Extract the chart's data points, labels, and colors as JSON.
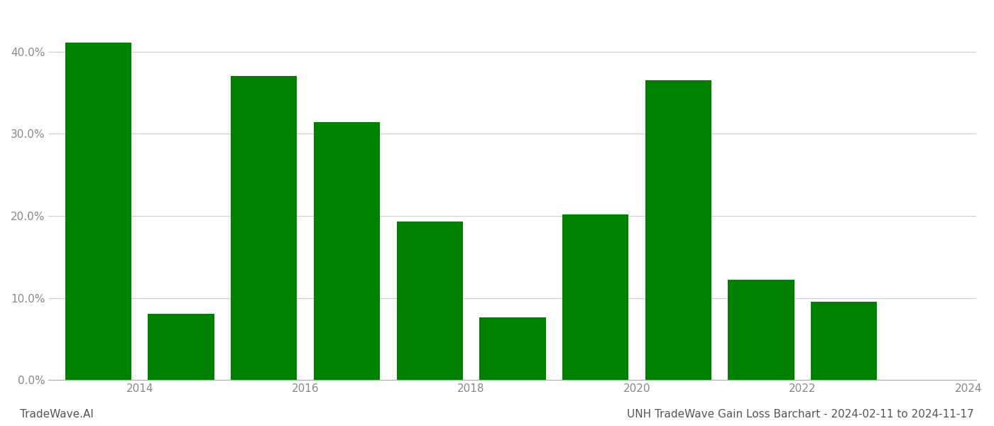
{
  "years": [
    2014,
    2015,
    2016,
    2017,
    2018,
    2019,
    2020,
    2021,
    2022,
    2023,
    2024
  ],
  "values": [
    41.1,
    8.1,
    37.0,
    31.4,
    19.3,
    7.6,
    20.2,
    36.5,
    12.2,
    9.5,
    0.0
  ],
  "bar_color": "#008000",
  "background_color": "#ffffff",
  "grid_color": "#cccccc",
  "ylabel_color": "#888888",
  "xlabel_color": "#888888",
  "title_text": "UNH TradeWave Gain Loss Barchart - 2024-02-11 to 2024-11-17",
  "watermark_text": "TradeWave.AI",
  "title_fontsize": 11,
  "watermark_fontsize": 11,
  "tick_fontsize": 11,
  "ylim": [
    0,
    45
  ],
  "yticks": [
    0,
    10,
    20,
    30,
    40
  ],
  "ytick_labels": [
    "0.0%",
    "10.0%",
    "20.0%",
    "30.0%",
    "40.0%"
  ],
  "xtick_positions": [
    2014.5,
    2016.5,
    2018.5,
    2020.5,
    2022.5,
    2024.5
  ],
  "xtick_labels": [
    "2014",
    "2016",
    "2018",
    "2020",
    "2022",
    "2024"
  ]
}
